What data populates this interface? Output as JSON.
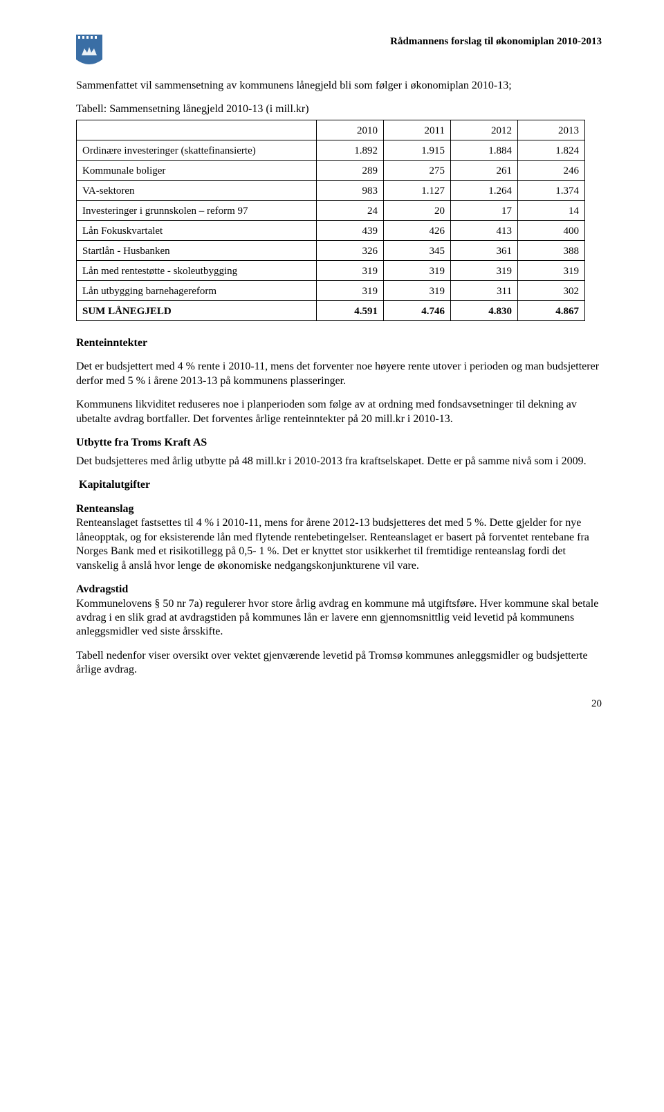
{
  "header": {
    "title": "Rådmannens forslag til økonomiplan 2010-2013"
  },
  "intro": {
    "p1": "Sammenfattet vil sammensetning av kommunens lånegjeld bli som følger i økonomiplan 2010-13;",
    "table_caption": "Tabell: Sammensetning lånegjeld 2010-13 (i mill.kr)"
  },
  "table": {
    "years": [
      "2010",
      "2011",
      "2012",
      "2013"
    ],
    "rows": [
      {
        "label": "Ordinære investeringer (skattefinansierte)",
        "cells": [
          "1.892",
          "1.915",
          "1.884",
          "1.824"
        ]
      },
      {
        "label": "Kommunale boliger",
        "cells": [
          "289",
          "275",
          "261",
          "246"
        ]
      },
      {
        "label": "VA-sektoren",
        "cells": [
          "983",
          "1.127",
          "1.264",
          "1.374"
        ]
      },
      {
        "label": "Investeringer i grunnskolen – reform 97",
        "cells": [
          "24",
          "20",
          "17",
          "14"
        ]
      },
      {
        "label": "Lån Fokuskvartalet",
        "cells": [
          "439",
          "426",
          "413",
          "400"
        ]
      },
      {
        "label": "Startlån - Husbanken",
        "cells": [
          "326",
          "345",
          "361",
          "388"
        ]
      },
      {
        "label": "Lån med rentestøtte - skoleutbygging",
        "cells": [
          "319",
          "319",
          "319",
          "319"
        ]
      },
      {
        "label": "Lån utbygging barnehagereform",
        "cells": [
          "319",
          "319",
          "311",
          "302"
        ]
      },
      {
        "label": "SUM LÅNEGJELD",
        "cells": [
          "4.591",
          "4.746",
          "4.830",
          "4.867"
        ],
        "bold": true
      }
    ]
  },
  "renteinntekter": {
    "heading": "Renteinntekter",
    "p1": "Det er budsjettert med 4 % rente i 2010-11, mens det forventer noe høyere rente utover i perioden og man budsjetterer derfor med 5 % i årene 2013-13 på kommunens plasseringer.",
    "p2": "Kommunens likviditet reduseres noe i planperioden som følge av at ordning med fondsavsetninger til dekning av ubetalte avdrag bortfaller. Det forventes årlige renteinntekter på 20 mill.kr i 2010-13."
  },
  "utbytte": {
    "heading": "Utbytte fra Troms Kraft AS",
    "p1": "Det budsjetteres med årlig utbytte på 48 mill.kr i 2010-2013 fra kraftselskapet. Dette er på samme nivå som i 2009."
  },
  "kapitalutgifter": {
    "heading": "Kapitalutgifter",
    "renteanslag_heading": "Renteanslag",
    "renteanslag_p": "Renteanslaget fastsettes til 4 % i 2010-11, mens for årene 2012-13 budsjetteres det med 5 %. Dette gjelder for nye låneopptak, og for eksisterende lån med flytende rentebetingelser. Renteanslaget er basert på forventet rentebane fra Norges Bank med et risikotillegg på 0,5- 1 %. Det er knyttet stor usikkerhet til fremtidige renteanslag fordi det vanskelig å anslå hvor lenge de økonomiske nedgangskonjunkturene vil vare.",
    "avdragstid_heading": "Avdragstid",
    "avdragstid_p": "Kommunelovens § 50 nr 7a) regulerer hvor store årlig avdrag en kommune må utgiftsføre. Hver kommune skal betale avdrag i en slik grad at avdragstiden på kommunes lån er lavere enn gjennomsnittlig veid levetid på kommunens anleggsmidler ved siste årsskifte.",
    "closing_p": "Tabell nedenfor viser oversikt over vektet gjenværende levetid på Tromsø kommunes anleggsmidler og budsjetterte årlige avdrag."
  },
  "page_number": "20"
}
